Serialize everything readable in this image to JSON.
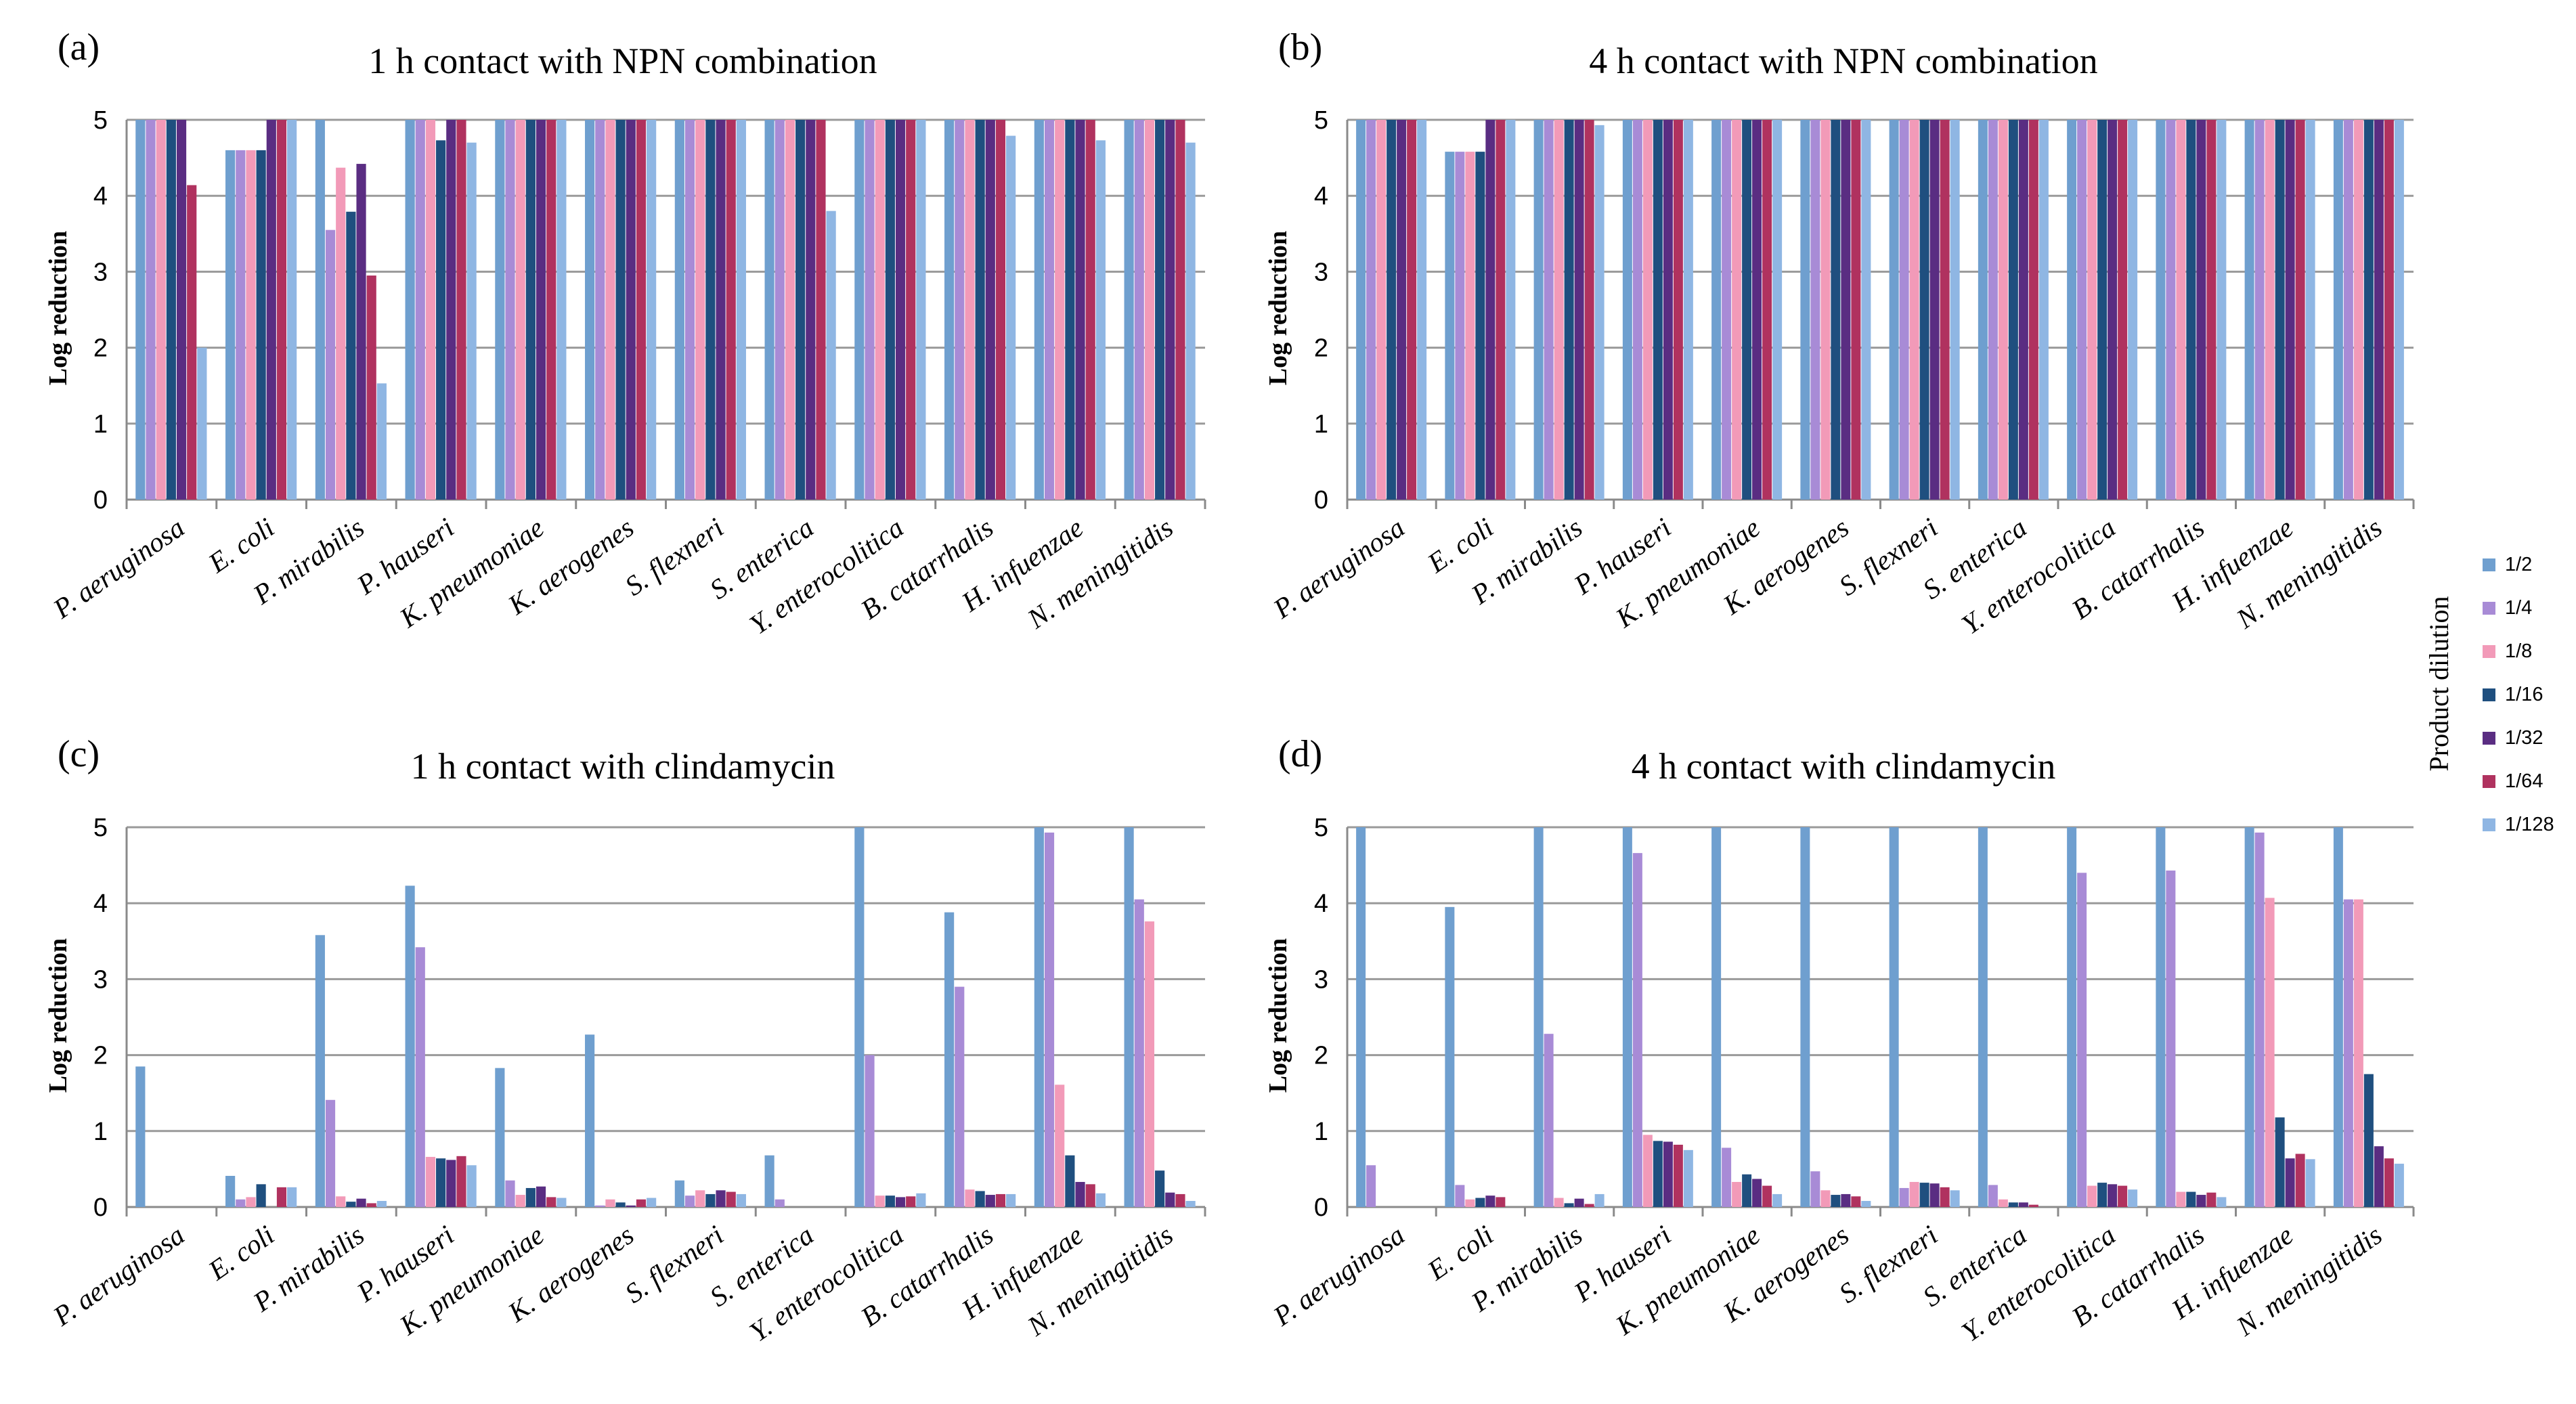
{
  "legend": {
    "title": "Product dilution",
    "series": [
      {
        "name": "1/2",
        "color": "#6f9fcf"
      },
      {
        "name": "1/4",
        "color": "#a88bd6"
      },
      {
        "name": "1/8",
        "color": "#f29ab8"
      },
      {
        "name": "1/16",
        "color": "#1f4f7f"
      },
      {
        "name": "1/32",
        "color": "#5a2d82"
      },
      {
        "name": "1/64",
        "color": "#b0325f"
      },
      {
        "name": "1/128",
        "color": "#8fb6e3"
      }
    ]
  },
  "chart_data": [
    {
      "type": "bar",
      "panel": "(a)",
      "title": "1 h contact with NPN combination",
      "ylabel": "Log reduction",
      "ylim": [
        0,
        5
      ],
      "yticks": [
        "0",
        "1",
        "2",
        "3",
        "4",
        "5"
      ],
      "categories": [
        "P. aeruginosa",
        "E. coli",
        "P. mirabilis",
        "P. hauseri",
        "K. pneumoniae",
        "K. aerogenes",
        "S. flexneri",
        "S. enterica",
        "Y. enterocolitica",
        "B. catarrhalis",
        "H. infuenzae",
        "N. meningitidis"
      ],
      "series": [
        {
          "name": "1/2",
          "values": [
            5,
            4.6,
            5,
            5,
            5,
            5,
            5,
            5,
            5,
            5,
            5,
            5
          ]
        },
        {
          "name": "1/4",
          "values": [
            5,
            4.6,
            3.55,
            5,
            5,
            5,
            5,
            5,
            5,
            5,
            5,
            5
          ]
        },
        {
          "name": "1/8",
          "values": [
            5,
            4.6,
            4.37,
            5,
            5,
            5,
            5,
            5,
            5,
            5,
            5,
            5
          ]
        },
        {
          "name": "1/16",
          "values": [
            5,
            4.6,
            3.79,
            4.73,
            5,
            5,
            5,
            5,
            5,
            5,
            5,
            5
          ]
        },
        {
          "name": "1/32",
          "values": [
            5,
            5,
            4.42,
            5,
            5,
            5,
            5,
            5,
            5,
            5,
            5,
            5
          ]
        },
        {
          "name": "1/64",
          "values": [
            4.14,
            5,
            2.95,
            5,
            5,
            5,
            5,
            5,
            5,
            5,
            5,
            5
          ]
        },
        {
          "name": "1/128",
          "values": [
            2.0,
            5,
            1.53,
            4.7,
            5,
            5,
            5,
            3.8,
            5,
            4.79,
            4.73,
            4.7
          ]
        }
      ]
    },
    {
      "type": "bar",
      "panel": "(b)",
      "title": "4 h contact with NPN combination",
      "ylabel": "Log reduction",
      "ylim": [
        0,
        5
      ],
      "yticks": [
        "0",
        "1",
        "2",
        "3",
        "4",
        "5"
      ],
      "categories": [
        "P. aeruginosa",
        "E. coli",
        "P. mirabilis",
        "P. hauseri",
        "K. pneumoniae",
        "K. aerogenes",
        "S. flexneri",
        "S. enterica",
        "Y. enterocolitica",
        "B. catarrhalis",
        "H. infuenzae",
        "N. meningitidis"
      ],
      "series": [
        {
          "name": "1/2",
          "values": [
            5,
            4.58,
            5,
            5,
            5,
            5,
            5,
            5,
            5,
            5,
            5,
            5
          ]
        },
        {
          "name": "1/4",
          "values": [
            5,
            4.58,
            5,
            5,
            5,
            5,
            5,
            5,
            5,
            5,
            5,
            5
          ]
        },
        {
          "name": "1/8",
          "values": [
            5,
            4.58,
            5,
            5,
            5,
            5,
            5,
            5,
            5,
            5,
            5,
            5
          ]
        },
        {
          "name": "1/16",
          "values": [
            5,
            4.58,
            5,
            5,
            5,
            5,
            5,
            5,
            5,
            5,
            5,
            5
          ]
        },
        {
          "name": "1/32",
          "values": [
            5,
            5,
            5,
            5,
            5,
            5,
            5,
            5,
            5,
            5,
            5,
            5
          ]
        },
        {
          "name": "1/64",
          "values": [
            5,
            5,
            5,
            5,
            5,
            5,
            5,
            5,
            5,
            5,
            5,
            5
          ]
        },
        {
          "name": "1/128",
          "values": [
            5,
            5,
            4.93,
            5,
            5,
            5,
            5,
            5,
            5,
            5,
            5,
            5
          ]
        }
      ]
    },
    {
      "type": "bar",
      "panel": "(c)",
      "title": "1 h contact with clindamycin",
      "ylabel": "Log reduction",
      "ylim": [
        0,
        5
      ],
      "yticks": [
        "0",
        "1",
        "2",
        "3",
        "4",
        "5"
      ],
      "categories": [
        "P. aeruginosa",
        "E. coli",
        "P. mirabilis",
        "P. hauseri",
        "K. pneumoniae",
        "K. aerogenes",
        "S. flexneri",
        "S. enterica",
        "Y. enterocolitica",
        "B. catarrhalis",
        "H. infuenzae",
        "N. meningitidis"
      ],
      "series": [
        {
          "name": "1/2",
          "values": [
            1.85,
            0.41,
            3.58,
            4.23,
            1.83,
            2.27,
            0.35,
            0.68,
            5,
            3.88,
            5,
            5
          ]
        },
        {
          "name": "1/4",
          "values": [
            0,
            0.1,
            1.41,
            3.42,
            0.35,
            0.02,
            0.15,
            0.1,
            2.0,
            2.9,
            4.93,
            4.05
          ]
        },
        {
          "name": "1/8",
          "values": [
            0,
            0.13,
            0.14,
            0.66,
            0.16,
            0.1,
            0.22,
            0,
            0.15,
            0.23,
            1.61,
            3.76
          ]
        },
        {
          "name": "1/16",
          "values": [
            0,
            0.3,
            0.07,
            0.64,
            0.25,
            0.06,
            0.17,
            0,
            0.15,
            0.21,
            0.68,
            0.48
          ]
        },
        {
          "name": "1/32",
          "values": [
            0,
            0,
            0.11,
            0.62,
            0.27,
            0.02,
            0.22,
            0,
            0.13,
            0.16,
            0.33,
            0.19
          ]
        },
        {
          "name": "1/64",
          "values": [
            0,
            0.26,
            0.05,
            0.67,
            0.13,
            0.1,
            0.2,
            0,
            0.14,
            0.17,
            0.3,
            0.17
          ]
        },
        {
          "name": "1/128",
          "values": [
            0,
            0.26,
            0.08,
            0.55,
            0.12,
            0.12,
            0.17,
            0,
            0.18,
            0.17,
            0.18,
            0.08
          ]
        }
      ]
    },
    {
      "type": "bar",
      "panel": "(d)",
      "title": "4 h contact with clindamycin",
      "ylabel": "Log reduction",
      "ylim": [
        0,
        5
      ],
      "yticks": [
        "0",
        "1",
        "2",
        "3",
        "4",
        "5"
      ],
      "categories": [
        "P. aeruginosa",
        "E. coli",
        "P. mirabilis",
        "P. hauseri",
        "K. pneumoniae",
        "K. aerogenes",
        "S. flexneri",
        "S. enterica",
        "Y. enterocolitica",
        "B. catarrhalis",
        "H. infuenzae",
        "N. meningitidis"
      ],
      "series": [
        {
          "name": "1/2",
          "values": [
            5,
            3.95,
            5,
            5,
            5,
            5,
            5,
            5,
            5,
            5,
            5,
            5
          ]
        },
        {
          "name": "1/4",
          "values": [
            0.55,
            0.29,
            2.28,
            4.66,
            0.78,
            0.47,
            0.25,
            0.29,
            4.4,
            4.43,
            4.93,
            4.05
          ]
        },
        {
          "name": "1/8",
          "values": [
            0,
            0.1,
            0.12,
            0.95,
            0.33,
            0.22,
            0.33,
            0.1,
            0.28,
            0.2,
            4.07,
            4.05
          ]
        },
        {
          "name": "1/16",
          "values": [
            0,
            0.12,
            0.05,
            0.87,
            0.43,
            0.16,
            0.32,
            0.06,
            0.32,
            0.2,
            1.18,
            1.75
          ]
        },
        {
          "name": "1/32",
          "values": [
            0,
            0.15,
            0.11,
            0.86,
            0.37,
            0.17,
            0.31,
            0.06,
            0.3,
            0.16,
            0.64,
            0.8
          ]
        },
        {
          "name": "1/64",
          "values": [
            0,
            0.13,
            0.04,
            0.82,
            0.28,
            0.14,
            0.26,
            0.03,
            0.28,
            0.19,
            0.7,
            0.64
          ]
        },
        {
          "name": "1/128",
          "values": [
            0,
            0,
            0.17,
            0.75,
            0.17,
            0.08,
            0.22,
            0,
            0.23,
            0.13,
            0.63,
            0.57
          ]
        }
      ]
    }
  ]
}
